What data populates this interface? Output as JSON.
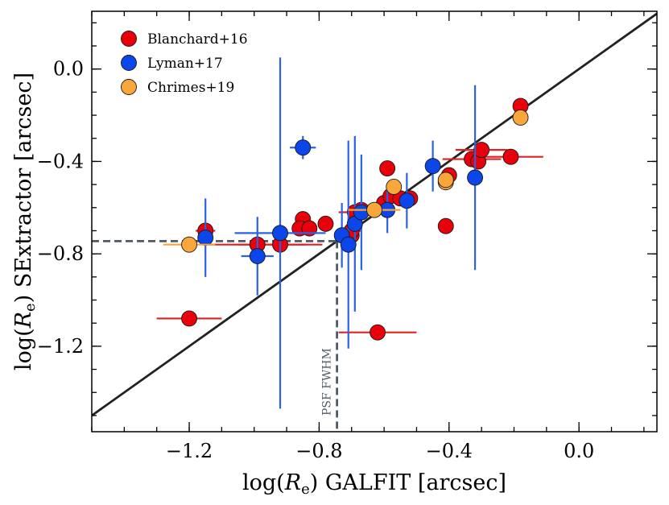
{
  "chart_data": {
    "type": "scatter",
    "title": "",
    "xlabel": {
      "prefix": "log(",
      "var": "R",
      "sub": "e",
      "suffix": ") GALFIT [arcsec]"
    },
    "ylabel": {
      "prefix": "log(",
      "var": "R",
      "sub": "e",
      "suffix": ") SExtractor [arcsec]"
    },
    "xlim": [
      -1.5,
      0.24
    ],
    "ylim": [
      -1.57,
      0.25
    ],
    "x_major_ticks": [
      -1.2,
      -0.8,
      -0.4,
      0.0
    ],
    "x_tick_labels": [
      "−1.2",
      "−0.8",
      "−0.4",
      "0.0"
    ],
    "x_minor_step": 0.1,
    "y_major_ticks": [
      0.0,
      -0.4,
      -0.8,
      -1.2
    ],
    "y_tick_labels": [
      "0.0",
      "−0.4",
      "−0.8",
      "−1.2"
    ],
    "y_minor_step": 0.1,
    "grid": false,
    "legend_position": "top-left",
    "one_to_one_line": true,
    "psf_fwhm": {
      "x": -0.745,
      "y": -0.745,
      "label": "PSF FWHM",
      "color": "#505a64"
    },
    "series": [
      {
        "name": "Blanchard+16",
        "color": "#e8000b",
        "errcolor": "#dd2222",
        "points": [
          {
            "x": -1.2,
            "y": -1.08,
            "xerr": 0.1
          },
          {
            "x": -1.15,
            "y": -0.7,
            "xerr": 0.03
          },
          {
            "x": -0.99,
            "y": -0.76,
            "xerr": 0.15
          },
          {
            "x": -0.92,
            "y": -0.76,
            "xerr": 0.13
          },
          {
            "x": -0.85,
            "y": -0.65,
            "xerr": 0.02
          },
          {
            "x": -0.86,
            "y": -0.69,
            "xerr": 0.02
          },
          {
            "x": -0.83,
            "y": -0.69,
            "xerr": 0.02
          },
          {
            "x": -0.78,
            "y": -0.67,
            "xerr": 0.02
          },
          {
            "x": -0.7,
            "y": -0.72,
            "xerr": 0.02
          },
          {
            "x": -0.7,
            "y": -0.7,
            "xerr": 0.03
          },
          {
            "x": -0.69,
            "y": -0.62,
            "xerr": 0.05
          },
          {
            "x": -0.67,
            "y": -0.61,
            "xerr": 0.02
          },
          {
            "x": -0.6,
            "y": -0.58,
            "xerr": 0.02
          },
          {
            "x": -0.59,
            "y": -0.43,
            "xerr": 0.01
          },
          {
            "x": -0.58,
            "y": -0.55,
            "xerr": 0.02
          },
          {
            "x": -0.55,
            "y": -0.56,
            "xerr": 0.02
          },
          {
            "x": -0.52,
            "y": -0.56,
            "xerr": 0.02
          },
          {
            "x": -0.62,
            "y": -1.14,
            "xerr": 0.12
          },
          {
            "x": -0.41,
            "y": -0.68,
            "xerr": 0.02
          },
          {
            "x": -0.4,
            "y": -0.46,
            "xerr": 0.02
          },
          {
            "x": -0.33,
            "y": -0.39,
            "xerr": 0.09
          },
          {
            "x": -0.31,
            "y": -0.4,
            "xerr": 0.02
          },
          {
            "x": -0.3,
            "y": -0.35,
            "xerr": 0.08
          },
          {
            "x": -0.21,
            "y": -0.38,
            "xerr": 0.1
          },
          {
            "x": -0.18,
            "y": -0.16,
            "xerr": 0.02
          }
        ]
      },
      {
        "name": "Lyman+17",
        "color": "#0c45e8",
        "errcolor": "#2a62e0",
        "points": [
          {
            "x": -1.15,
            "y": -0.73,
            "yerr": 0.17
          },
          {
            "x": -0.99,
            "y": -0.81,
            "xerr": 0.05,
            "yerr": 0.17
          },
          {
            "x": -0.92,
            "y": -0.71,
            "xerr": 0.14,
            "yerr": 0.76
          },
          {
            "x": -0.85,
            "y": -0.34,
            "xerr": 0.04,
            "yerr": 0.05
          },
          {
            "x": -0.73,
            "y": -0.72,
            "xerr": 0.02,
            "yerr": 0.14
          },
          {
            "x": -0.71,
            "y": -0.76,
            "yerr": 0.45
          },
          {
            "x": -0.69,
            "y": -0.67,
            "yerr": 0.38
          },
          {
            "x": -0.67,
            "y": -0.62,
            "yerr": 0.25
          },
          {
            "x": -0.59,
            "y": -0.61,
            "yerr": 0.1
          },
          {
            "x": -0.53,
            "y": -0.57,
            "yerr": 0.12
          },
          {
            "x": -0.45,
            "y": -0.42,
            "yerr": 0.11
          },
          {
            "x": -0.32,
            "y": -0.47,
            "yerr": 0.4
          }
        ]
      },
      {
        "name": "Chrimes+19",
        "color": "#f9a63a",
        "errcolor": "#f5a33a",
        "points": [
          {
            "x": -1.2,
            "y": -0.76,
            "xerr": 0.08
          },
          {
            "x": -0.63,
            "y": -0.61,
            "xerr": 0.08
          },
          {
            "x": -0.57,
            "y": -0.51,
            "xerr": 0.01
          },
          {
            "x": -0.41,
            "y": -0.49,
            "xerr": 0.01
          },
          {
            "x": -0.41,
            "y": -0.48,
            "xerr": 0.01
          },
          {
            "x": -0.18,
            "y": -0.21,
            "xerr": 0.01
          }
        ]
      }
    ]
  }
}
